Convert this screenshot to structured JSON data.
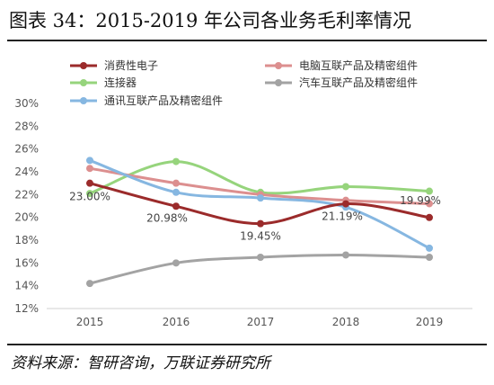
{
  "title": "图表 34：2015-2019 年公司各业务毛利率情况",
  "source": "资料来源：智研咨询，万联证券研究所",
  "chart_data": {
    "type": "line",
    "x": [
      "2015",
      "2016",
      "2017",
      "2018",
      "2019"
    ],
    "yticks": [
      "12%",
      "14%",
      "16%",
      "18%",
      "20%",
      "22%",
      "24%",
      "26%",
      "28%",
      "30%"
    ],
    "ylim": [
      12,
      30
    ],
    "grid": false,
    "legend_position": "top",
    "series": [
      {
        "name": "消费性电子",
        "color": "#9b2b2b",
        "values": [
          23.0,
          20.98,
          19.45,
          21.19,
          19.99
        ]
      },
      {
        "name": "电脑互联产品及精密组件",
        "color": "#dc8f8f",
        "values": [
          24.3,
          23.0,
          22.0,
          21.5,
          21.2
        ]
      },
      {
        "name": "连接器",
        "color": "#96d47c",
        "values": [
          22.1,
          24.9,
          22.2,
          22.7,
          22.3
        ]
      },
      {
        "name": "汽车互联产品及精密组件",
        "color": "#a3a3a3",
        "values": [
          14.2,
          16.0,
          16.5,
          16.7,
          16.5
        ]
      },
      {
        "name": "通讯互联产品及精密组件",
        "color": "#86b7e1",
        "values": [
          25.0,
          22.2,
          21.7,
          20.9,
          17.3
        ]
      }
    ],
    "data_labels": [
      {
        "series": 0,
        "index": 0,
        "text": "23.00%"
      },
      {
        "series": 0,
        "index": 1,
        "text": "20.98%"
      },
      {
        "series": 0,
        "index": 2,
        "text": "19.45%"
      },
      {
        "series": 0,
        "index": 3,
        "text": "21.19%"
      },
      {
        "series": 0,
        "index": 4,
        "text": "19.99%"
      }
    ]
  }
}
